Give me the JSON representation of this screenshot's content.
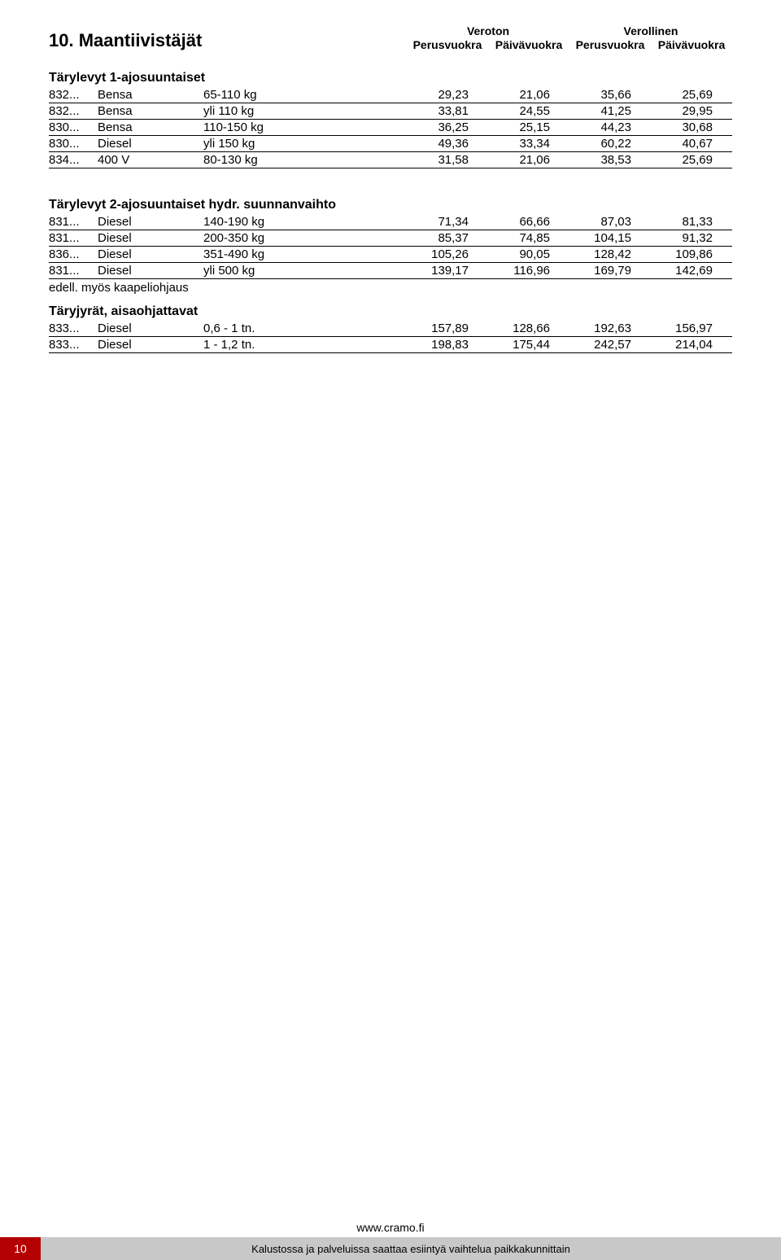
{
  "header": {
    "section_title": "10. Maantiivistäjät",
    "col_group_1": "Veroton",
    "col_group_2": "Verollinen",
    "col_sub_1": "Perusvuokra",
    "col_sub_2": "Päivävuokra",
    "col_sub_3": "Perusvuokra",
    "col_sub_4": "Päivävuokra"
  },
  "sections": {
    "s1": {
      "title": "Tärylevyt 1-ajosuuntaiset"
    },
    "s2": {
      "title": "Tärylevyt 2-ajosuuntaiset hydr. suunnanvaihto"
    },
    "s2_note": "edell. myös kaapeliohjaus",
    "s3": {
      "title": "Täryjyrät,  aisaohjattavat"
    }
  },
  "rows": {
    "r1": {
      "code": "832...",
      "type": "Bensa",
      "spec": "65-110 kg",
      "v1": "29,23",
      "v2": "21,06",
      "v3": "35,66",
      "v4": "25,69"
    },
    "r2": {
      "code": "832...",
      "type": "Bensa",
      "spec": "yli 110 kg",
      "v1": "33,81",
      "v2": "24,55",
      "v3": "41,25",
      "v4": "29,95"
    },
    "r3": {
      "code": "830...",
      "type": "Bensa",
      "spec": "110-150 kg",
      "v1": "36,25",
      "v2": "25,15",
      "v3": "44,23",
      "v4": "30,68"
    },
    "r4": {
      "code": "830...",
      "type": "Diesel",
      "spec": "yli 150 kg",
      "v1": "49,36",
      "v2": "33,34",
      "v3": "60,22",
      "v4": "40,67"
    },
    "r5": {
      "code": "834...",
      "type": "400 V",
      "spec": "80-130 kg",
      "v1": "31,58",
      "v2": "21,06",
      "v3": "38,53",
      "v4": "25,69"
    },
    "r6": {
      "code": "831...",
      "type": "Diesel",
      "spec": "140-190 kg",
      "v1": "71,34",
      "v2": "66,66",
      "v3": "87,03",
      "v4": "81,33"
    },
    "r7": {
      "code": "831...",
      "type": "Diesel",
      "spec": "200-350 kg",
      "v1": "85,37",
      "v2": "74,85",
      "v3": "104,15",
      "v4": "91,32"
    },
    "r8": {
      "code": "836...",
      "type": "Diesel",
      "spec": "351-490 kg",
      "v1": "105,26",
      "v2": "90,05",
      "v3": "128,42",
      "v4": "109,86"
    },
    "r9": {
      "code": "831...",
      "type": "Diesel",
      "spec": "yli 500 kg",
      "v1": "139,17",
      "v2": "116,96",
      "v3": "169,79",
      "v4": "142,69"
    },
    "r10": {
      "code": "833...",
      "type": "Diesel",
      "spec": "0,6 - 1 tn.",
      "v1": "157,89",
      "v2": "128,66",
      "v3": "192,63",
      "v4": "156,97"
    },
    "r11": {
      "code": "833...",
      "type": "Diesel",
      "spec": "1 - 1,2 tn.",
      "v1": "198,83",
      "v2": "175,44",
      "v3": "242,57",
      "v4": "214,04"
    }
  },
  "footer": {
    "url": "www.cramo.fi",
    "page_num": "10",
    "text": "Kalustossa ja palveluissa saattaa esiintyä vaihtelua paikkakunnittain"
  }
}
